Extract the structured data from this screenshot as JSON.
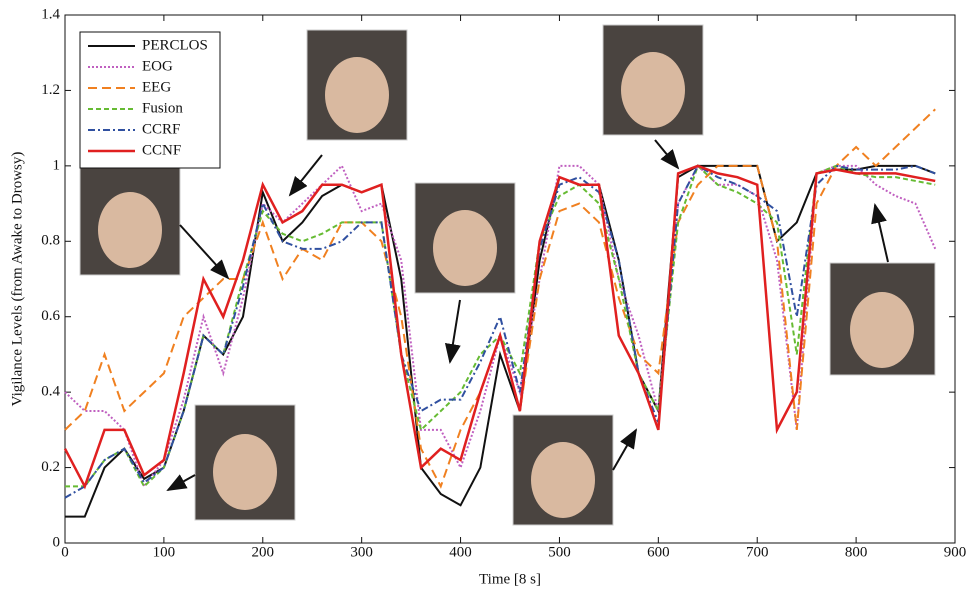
{
  "chart_data": {
    "type": "line",
    "xlabel": "Time [8 s]",
    "ylabel": "Vigilance Levels (from Awake to Drowsy)",
    "xlim": [
      0,
      900
    ],
    "xticks": [
      0,
      100,
      200,
      300,
      400,
      500,
      600,
      700,
      800,
      900
    ],
    "ylim": [
      0,
      1.4
    ],
    "yticks": [
      0,
      0.2,
      0.4,
      0.6,
      0.8,
      1,
      1.2,
      1.4
    ],
    "grid": false,
    "legend": "upper left",
    "x": [
      0,
      20,
      40,
      60,
      80,
      100,
      120,
      140,
      160,
      180,
      200,
      220,
      240,
      260,
      280,
      300,
      320,
      340,
      360,
      380,
      400,
      420,
      440,
      460,
      480,
      500,
      520,
      540,
      560,
      580,
      600,
      620,
      640,
      660,
      680,
      700,
      720,
      740,
      760,
      780,
      800,
      820,
      840,
      860,
      880
    ],
    "series": [
      {
        "name": "PERCLOS",
        "color": "#111111",
        "dash": "none",
        "width": 2,
        "values": [
          0.07,
          0.07,
          0.2,
          0.25,
          0.17,
          0.2,
          0.35,
          0.55,
          0.5,
          0.6,
          0.93,
          0.8,
          0.85,
          0.92,
          0.95,
          0.93,
          0.95,
          0.7,
          0.2,
          0.13,
          0.1,
          0.2,
          0.5,
          0.35,
          0.75,
          0.97,
          0.95,
          0.95,
          0.75,
          0.45,
          0.35,
          0.97,
          1,
          1,
          1,
          1,
          0.8,
          0.85,
          0.98,
          0.99,
          0.99,
          1,
          1,
          1,
          0.98
        ]
      },
      {
        "name": "EOG",
        "color": "#c060c0",
        "dash": "2,2",
        "width": 2,
        "values": [
          0.4,
          0.35,
          0.35,
          0.3,
          0.15,
          0.22,
          0.38,
          0.6,
          0.45,
          0.65,
          0.9,
          0.85,
          0.9,
          0.95,
          1,
          0.88,
          0.9,
          0.75,
          0.3,
          0.3,
          0.2,
          0.35,
          0.55,
          0.4,
          0.7,
          1,
          1,
          0.95,
          0.7,
          0.55,
          0.35,
          0.9,
          1,
          0.95,
          0.95,
          0.92,
          0.75,
          0.3,
          0.98,
          1,
          1,
          0.95,
          0.92,
          0.9,
          0.78
        ]
      },
      {
        "name": "EEG",
        "color": "#f08020",
        "dash": "9,5",
        "width": 2,
        "values": [
          0.3,
          0.35,
          0.5,
          0.35,
          0.4,
          0.45,
          0.6,
          0.65,
          0.7,
          0.7,
          0.85,
          0.7,
          0.78,
          0.75,
          0.85,
          0.85,
          0.8,
          0.6,
          0.25,
          0.15,
          0.3,
          0.4,
          0.55,
          0.35,
          0.7,
          0.88,
          0.9,
          0.85,
          0.65,
          0.5,
          0.45,
          0.85,
          0.95,
          1,
          1,
          1,
          0.8,
          0.3,
          0.9,
          1,
          1.05,
          1,
          1.05,
          1.1,
          1.15
        ]
      },
      {
        "name": "Fusion",
        "color": "#66bb33",
        "dash": "5,3",
        "width": 2,
        "values": [
          0.15,
          0.15,
          0.22,
          0.25,
          0.15,
          0.2,
          0.35,
          0.55,
          0.5,
          0.7,
          0.88,
          0.82,
          0.8,
          0.82,
          0.85,
          0.85,
          0.85,
          0.5,
          0.3,
          0.35,
          0.4,
          0.5,
          0.55,
          0.45,
          0.8,
          0.92,
          0.95,
          0.9,
          0.7,
          0.45,
          0.35,
          0.85,
          1,
          0.95,
          0.93,
          0.9,
          0.85,
          0.5,
          0.98,
          1,
          0.98,
          0.97,
          0.97,
          0.96,
          0.95
        ]
      },
      {
        "name": "CCRF",
        "color": "#3050a0",
        "dash": "7,3,2,3",
        "width": 2,
        "values": [
          0.12,
          0.15,
          0.22,
          0.25,
          0.16,
          0.2,
          0.35,
          0.55,
          0.5,
          0.68,
          0.9,
          0.8,
          0.78,
          0.78,
          0.8,
          0.85,
          0.85,
          0.5,
          0.35,
          0.38,
          0.38,
          0.48,
          0.6,
          0.4,
          0.78,
          0.95,
          0.97,
          0.93,
          0.75,
          0.45,
          0.32,
          0.9,
          1,
          0.97,
          0.95,
          0.92,
          0.88,
          0.6,
          0.95,
          1,
          0.99,
          0.99,
          0.99,
          1,
          0.98
        ]
      },
      {
        "name": "CCNF",
        "color": "#e02020",
        "dash": "none",
        "width": 2.5,
        "values": [
          0.25,
          0.15,
          0.3,
          0.3,
          0.18,
          0.22,
          0.45,
          0.7,
          0.6,
          0.75,
          0.95,
          0.85,
          0.88,
          0.95,
          0.95,
          0.93,
          0.95,
          0.5,
          0.2,
          0.25,
          0.22,
          0.4,
          0.55,
          0.35,
          0.8,
          0.97,
          0.95,
          0.95,
          0.55,
          0.45,
          0.3,
          0.98,
          1,
          0.98,
          0.97,
          0.95,
          0.3,
          0.4,
          0.98,
          0.99,
          0.98,
          0.98,
          0.98,
          0.97,
          0.96
        ]
      }
    ]
  }
}
